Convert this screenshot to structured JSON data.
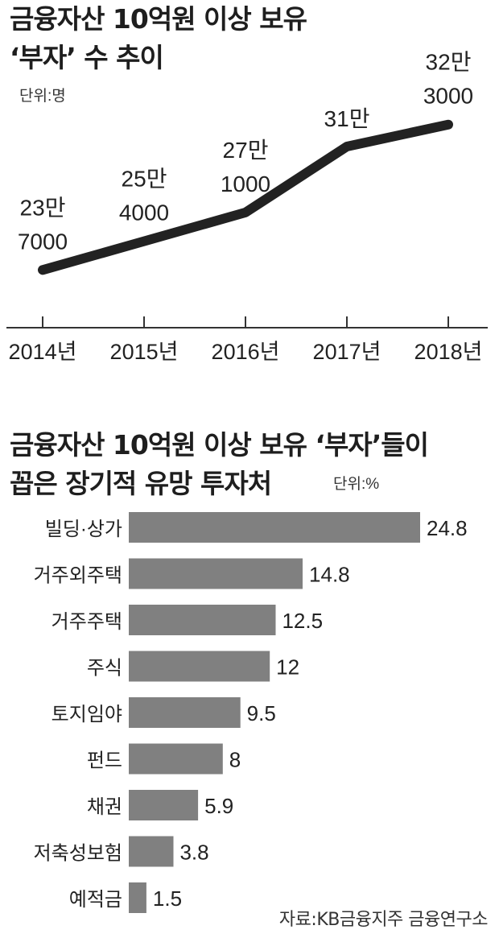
{
  "chart_data": [
    {
      "type": "line",
      "title_line1": "금융자산 10억원 이상 보유",
      "title_line2": "‘부자’ 수 추이",
      "unit": "단위:명",
      "categories": [
        "2014년",
        "2015년",
        "2016년",
        "2017년",
        "2018년"
      ],
      "values": [
        237000,
        254000,
        271000,
        310000,
        323000
      ],
      "data_labels": [
        [
          "23만",
          "7000"
        ],
        [
          "25만",
          "4000"
        ],
        [
          "27만",
          "1000"
        ],
        [
          "31만",
          ""
        ],
        [
          "32만",
          "3000"
        ]
      ],
      "ylim": [
        230000,
        330000
      ],
      "color": "#222222"
    },
    {
      "type": "bar",
      "orientation": "horizontal",
      "title_line1": "금융자산 10억원 이상 보유 ‘부자’들이",
      "title_line2": "꼽은 장기적 유망 투자처",
      "unit": "단위:%",
      "categories": [
        "빌딩·상가",
        "거주외주택",
        "거주주택",
        "주식",
        "토지임야",
        "펀드",
        "채권",
        "저축성보험",
        "예적금"
      ],
      "values": [
        24.8,
        14.8,
        12.5,
        12,
        9.5,
        8,
        5.9,
        3.8,
        1.5
      ],
      "xlim": [
        0,
        24.8
      ],
      "color": "#808080"
    }
  ],
  "source": "자료:KB금융지주 금융연구소"
}
